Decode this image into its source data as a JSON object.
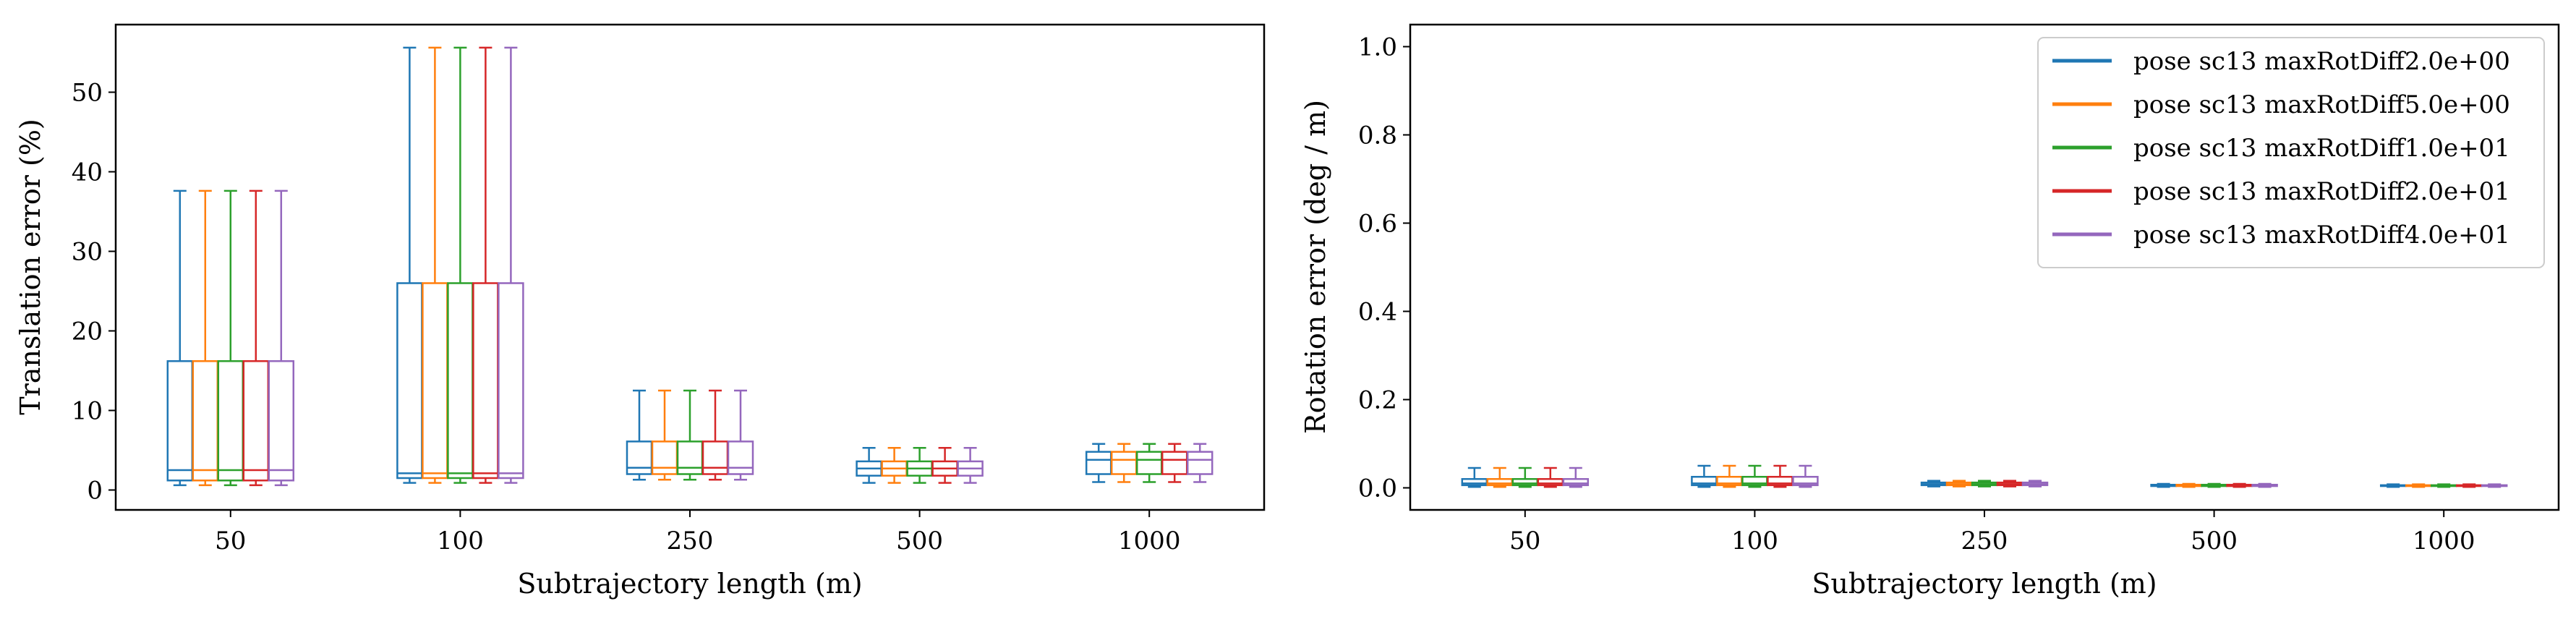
{
  "chart_data": [
    {
      "type": "boxplot",
      "xlabel": "Subtrajectory length (m)",
      "ylabel": "Translation error (%)",
      "categories": [
        "50",
        "100",
        "250",
        "500",
        "1000"
      ],
      "ylim": [
        -2.5,
        58.5
      ],
      "yticks": [
        0,
        10,
        20,
        30,
        40,
        50
      ],
      "grid": false,
      "series": [
        {
          "name": "pose sc13 maxRotDiff2.0e+00",
          "boxes": [
            {
              "whislo": 0.6,
              "q1": 1.2,
              "med": 2.5,
              "q3": 16.2,
              "whishi": 37.6
            },
            {
              "whislo": 0.9,
              "q1": 1.5,
              "med": 2.1,
              "q3": 26.0,
              "whishi": 55.6
            },
            {
              "whislo": 1.3,
              "q1": 2.0,
              "med": 2.8,
              "q3": 6.1,
              "whishi": 12.5
            },
            {
              "whislo": 0.9,
              "q1": 1.8,
              "med": 2.7,
              "q3": 3.6,
              "whishi": 5.3
            },
            {
              "whislo": 1.0,
              "q1": 2.0,
              "med": 3.8,
              "q3": 4.8,
              "whishi": 5.8
            }
          ]
        },
        {
          "name": "pose sc13 maxRotDiff5.0e+00",
          "boxes": [
            {
              "whislo": 0.6,
              "q1": 1.2,
              "med": 2.5,
              "q3": 16.2,
              "whishi": 37.6
            },
            {
              "whislo": 0.9,
              "q1": 1.5,
              "med": 2.1,
              "q3": 26.0,
              "whishi": 55.6
            },
            {
              "whislo": 1.3,
              "q1": 2.0,
              "med": 2.8,
              "q3": 6.1,
              "whishi": 12.5
            },
            {
              "whislo": 0.9,
              "q1": 1.8,
              "med": 2.7,
              "q3": 3.6,
              "whishi": 5.3
            },
            {
              "whislo": 1.0,
              "q1": 2.0,
              "med": 3.8,
              "q3": 4.8,
              "whishi": 5.8
            }
          ]
        },
        {
          "name": "pose sc13 maxRotDiff1.0e+01",
          "boxes": [
            {
              "whislo": 0.6,
              "q1": 1.2,
              "med": 2.5,
              "q3": 16.2,
              "whishi": 37.6
            },
            {
              "whislo": 0.9,
              "q1": 1.5,
              "med": 2.1,
              "q3": 26.0,
              "whishi": 55.6
            },
            {
              "whislo": 1.3,
              "q1": 2.0,
              "med": 2.8,
              "q3": 6.1,
              "whishi": 12.5
            },
            {
              "whislo": 0.9,
              "q1": 1.8,
              "med": 2.7,
              "q3": 3.6,
              "whishi": 5.3
            },
            {
              "whislo": 1.0,
              "q1": 2.0,
              "med": 3.8,
              "q3": 4.8,
              "whishi": 5.8
            }
          ]
        },
        {
          "name": "pose sc13 maxRotDiff2.0e+01",
          "boxes": [
            {
              "whislo": 0.6,
              "q1": 1.2,
              "med": 2.5,
              "q3": 16.2,
              "whishi": 37.6
            },
            {
              "whislo": 0.9,
              "q1": 1.5,
              "med": 2.1,
              "q3": 26.0,
              "whishi": 55.6
            },
            {
              "whislo": 1.3,
              "q1": 2.0,
              "med": 2.8,
              "q3": 6.1,
              "whishi": 12.5
            },
            {
              "whislo": 0.9,
              "q1": 1.8,
              "med": 2.7,
              "q3": 3.6,
              "whishi": 5.3
            },
            {
              "whislo": 1.0,
              "q1": 2.0,
              "med": 3.8,
              "q3": 4.8,
              "whishi": 5.8
            }
          ]
        },
        {
          "name": "pose sc13 maxRotDiff4.0e+01",
          "boxes": [
            {
              "whislo": 0.6,
              "q1": 1.2,
              "med": 2.5,
              "q3": 16.2,
              "whishi": 37.6
            },
            {
              "whislo": 0.9,
              "q1": 1.5,
              "med": 2.1,
              "q3": 26.0,
              "whishi": 55.6
            },
            {
              "whislo": 1.3,
              "q1": 2.0,
              "med": 2.8,
              "q3": 6.1,
              "whishi": 12.5
            },
            {
              "whislo": 0.9,
              "q1": 1.8,
              "med": 2.7,
              "q3": 3.6,
              "whishi": 5.3
            },
            {
              "whislo": 1.0,
              "q1": 2.0,
              "med": 3.8,
              "q3": 4.8,
              "whishi": 5.8
            }
          ]
        }
      ]
    },
    {
      "type": "boxplot",
      "xlabel": "Subtrajectory length (m)",
      "ylabel": "Rotation error (deg / m)",
      "categories": [
        "50",
        "100",
        "250",
        "500",
        "1000"
      ],
      "ylim": [
        -0.05,
        1.05
      ],
      "yticks": [
        "0.0",
        "0.2",
        "0.4",
        "0.6",
        "0.8",
        "1.0"
      ],
      "grid": false,
      "legend_position": "top-right",
      "series": [
        {
          "name": "pose sc13 maxRotDiff2.0e+00",
          "boxes": [
            {
              "whislo": 0.002,
              "q1": 0.006,
              "med": 0.01,
              "q3": 0.02,
              "whishi": 0.045
            },
            {
              "whislo": 0.002,
              "q1": 0.006,
              "med": 0.01,
              "q3": 0.025,
              "whishi": 0.05
            },
            {
              "whislo": 0.003,
              "q1": 0.006,
              "med": 0.008,
              "q3": 0.012,
              "whishi": 0.016
            },
            {
              "whislo": 0.002,
              "q1": 0.004,
              "med": 0.005,
              "q3": 0.007,
              "whishi": 0.009
            },
            {
              "whislo": 0.002,
              "q1": 0.004,
              "med": 0.005,
              "q3": 0.006,
              "whishi": 0.008
            }
          ]
        },
        {
          "name": "pose sc13 maxRotDiff5.0e+00",
          "boxes": [
            {
              "whislo": 0.002,
              "q1": 0.006,
              "med": 0.01,
              "q3": 0.02,
              "whishi": 0.045
            },
            {
              "whislo": 0.002,
              "q1": 0.006,
              "med": 0.01,
              "q3": 0.025,
              "whishi": 0.05
            },
            {
              "whislo": 0.003,
              "q1": 0.006,
              "med": 0.008,
              "q3": 0.012,
              "whishi": 0.016
            },
            {
              "whislo": 0.002,
              "q1": 0.004,
              "med": 0.005,
              "q3": 0.007,
              "whishi": 0.009
            },
            {
              "whislo": 0.002,
              "q1": 0.004,
              "med": 0.005,
              "q3": 0.006,
              "whishi": 0.008
            }
          ]
        },
        {
          "name": "pose sc13 maxRotDiff1.0e+01",
          "boxes": [
            {
              "whislo": 0.002,
              "q1": 0.006,
              "med": 0.01,
              "q3": 0.02,
              "whishi": 0.045
            },
            {
              "whislo": 0.002,
              "q1": 0.006,
              "med": 0.01,
              "q3": 0.025,
              "whishi": 0.05
            },
            {
              "whislo": 0.003,
              "q1": 0.006,
              "med": 0.008,
              "q3": 0.012,
              "whishi": 0.016
            },
            {
              "whislo": 0.002,
              "q1": 0.004,
              "med": 0.005,
              "q3": 0.007,
              "whishi": 0.009
            },
            {
              "whislo": 0.002,
              "q1": 0.004,
              "med": 0.005,
              "q3": 0.006,
              "whishi": 0.008
            }
          ]
        },
        {
          "name": "pose sc13 maxRotDiff2.0e+01",
          "boxes": [
            {
              "whislo": 0.002,
              "q1": 0.006,
              "med": 0.01,
              "q3": 0.02,
              "whishi": 0.045
            },
            {
              "whislo": 0.002,
              "q1": 0.006,
              "med": 0.01,
              "q3": 0.025,
              "whishi": 0.05
            },
            {
              "whislo": 0.003,
              "q1": 0.006,
              "med": 0.008,
              "q3": 0.012,
              "whishi": 0.016
            },
            {
              "whislo": 0.002,
              "q1": 0.004,
              "med": 0.005,
              "q3": 0.007,
              "whishi": 0.009
            },
            {
              "whislo": 0.002,
              "q1": 0.004,
              "med": 0.005,
              "q3": 0.006,
              "whishi": 0.008
            }
          ]
        },
        {
          "name": "pose sc13 maxRotDiff4.0e+01",
          "boxes": [
            {
              "whislo": 0.002,
              "q1": 0.006,
              "med": 0.01,
              "q3": 0.02,
              "whishi": 0.045
            },
            {
              "whislo": 0.002,
              "q1": 0.006,
              "med": 0.01,
              "q3": 0.025,
              "whishi": 0.05
            },
            {
              "whislo": 0.003,
              "q1": 0.006,
              "med": 0.008,
              "q3": 0.012,
              "whishi": 0.016
            },
            {
              "whislo": 0.002,
              "q1": 0.004,
              "med": 0.005,
              "q3": 0.007,
              "whishi": 0.009
            },
            {
              "whislo": 0.002,
              "q1": 0.004,
              "med": 0.005,
              "q3": 0.006,
              "whishi": 0.008
            }
          ]
        }
      ]
    }
  ],
  "colors": [
    "#1f77b4",
    "#ff7f0e",
    "#2ca02c",
    "#d62728",
    "#9467bd"
  ]
}
